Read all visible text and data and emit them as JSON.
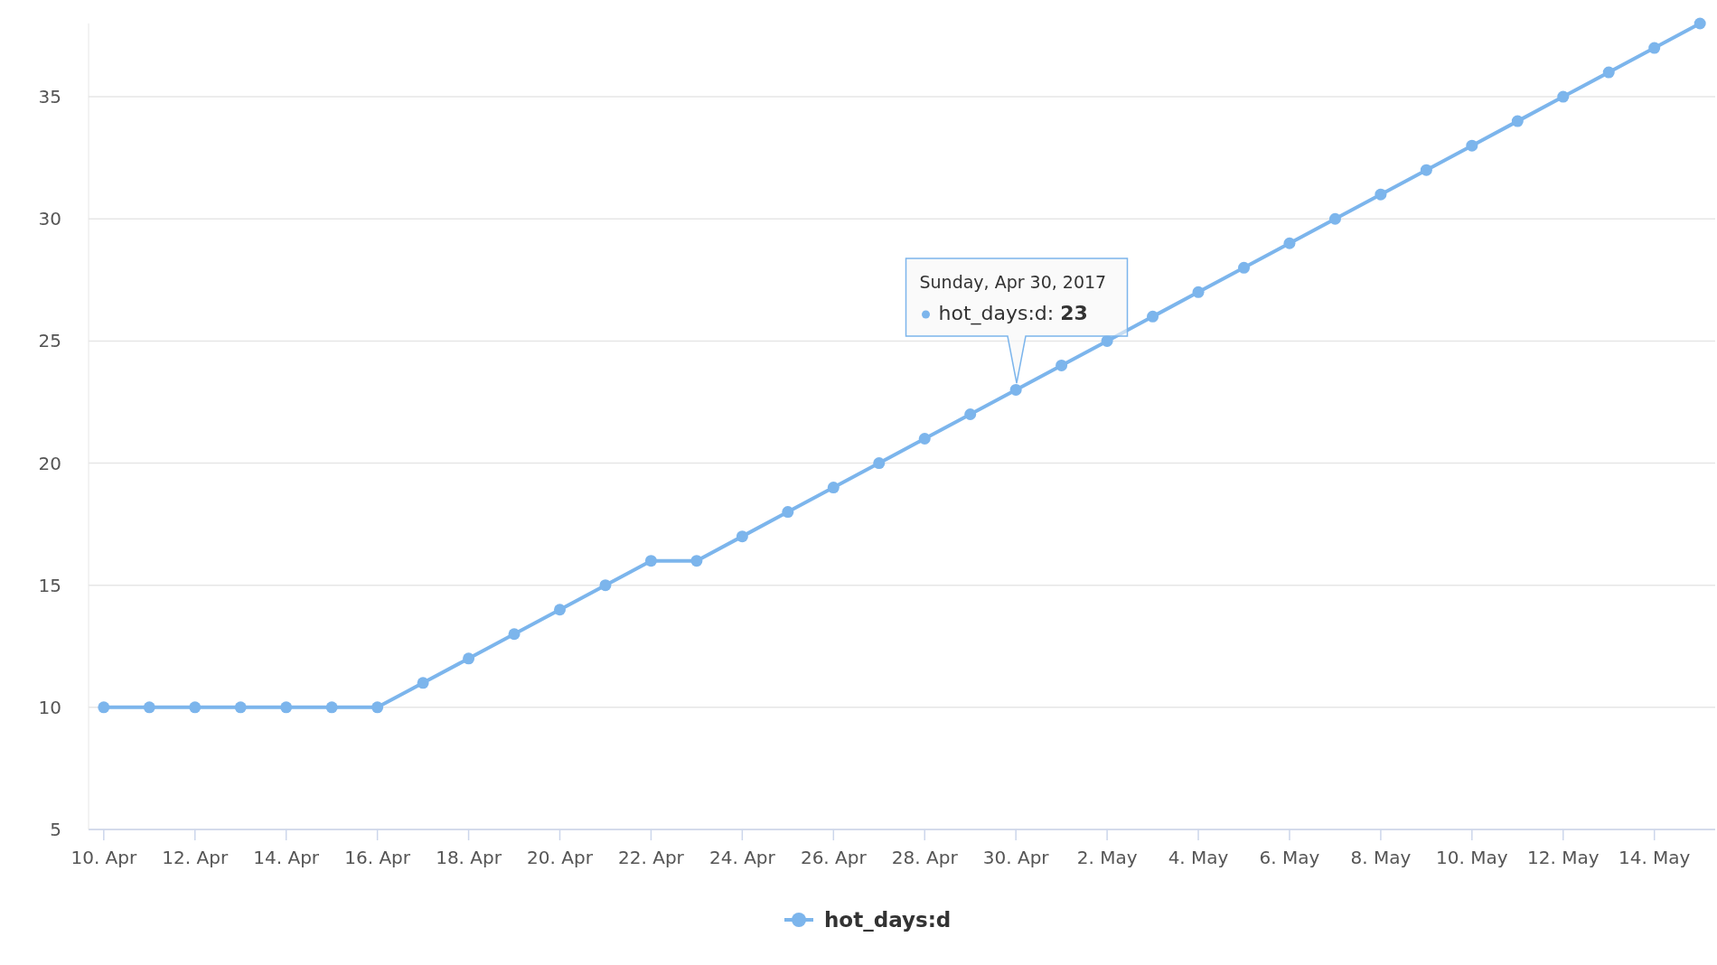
{
  "chart_data": {
    "type": "line",
    "x": [
      "2017-04-10",
      "2017-04-11",
      "2017-04-12",
      "2017-04-13",
      "2017-04-14",
      "2017-04-15",
      "2017-04-16",
      "2017-04-17",
      "2017-04-18",
      "2017-04-19",
      "2017-04-20",
      "2017-04-21",
      "2017-04-22",
      "2017-04-23",
      "2017-04-24",
      "2017-04-25",
      "2017-04-26",
      "2017-04-27",
      "2017-04-28",
      "2017-04-29",
      "2017-04-30",
      "2017-05-01",
      "2017-05-02",
      "2017-05-03",
      "2017-05-04",
      "2017-05-05",
      "2017-05-06",
      "2017-05-07",
      "2017-05-08",
      "2017-05-09",
      "2017-05-10",
      "2017-05-11",
      "2017-05-12",
      "2017-05-13",
      "2017-05-14",
      "2017-05-15"
    ],
    "series": [
      {
        "name": "hot_days:d",
        "color": "#7cb5ec",
        "values": [
          10,
          10,
          10,
          10,
          10,
          10,
          10,
          11,
          12,
          13,
          14,
          15,
          16,
          16,
          17,
          18,
          19,
          20,
          21,
          22,
          23,
          24,
          25,
          26,
          27,
          28,
          29,
          30,
          31,
          32,
          33,
          34,
          35,
          36,
          37,
          38
        ]
      }
    ],
    "xlim": [
      "2017-04-09T16:00",
      "2017-05-15T08:00"
    ],
    "xticks": [
      {
        "value": "2017-04-10",
        "label": "10. Apr"
      },
      {
        "value": "2017-04-12",
        "label": "12. Apr"
      },
      {
        "value": "2017-04-14",
        "label": "14. Apr"
      },
      {
        "value": "2017-04-16",
        "label": "16. Apr"
      },
      {
        "value": "2017-04-18",
        "label": "18. Apr"
      },
      {
        "value": "2017-04-20",
        "label": "20. Apr"
      },
      {
        "value": "2017-04-22",
        "label": "22. Apr"
      },
      {
        "value": "2017-04-24",
        "label": "24. Apr"
      },
      {
        "value": "2017-04-26",
        "label": "26. Apr"
      },
      {
        "value": "2017-04-28",
        "label": "28. Apr"
      },
      {
        "value": "2017-04-30",
        "label": "30. Apr"
      },
      {
        "value": "2017-05-02",
        "label": "2. May"
      },
      {
        "value": "2017-05-04",
        "label": "4. May"
      },
      {
        "value": "2017-05-06",
        "label": "6. May"
      },
      {
        "value": "2017-05-08",
        "label": "8. May"
      },
      {
        "value": "2017-05-10",
        "label": "10. May"
      },
      {
        "value": "2017-05-12",
        "label": "12. May"
      },
      {
        "value": "2017-05-14",
        "label": "14. May"
      }
    ],
    "ylim": [
      5,
      38
    ],
    "yticks": [
      5,
      10,
      15,
      20,
      25,
      30,
      35
    ],
    "grid": "y",
    "legend": "bottom",
    "marker": "circle",
    "line_style": "solid",
    "annotations": [
      "Sunday, Apr 30, 2017",
      "hot_days:d: 23"
    ]
  }
}
